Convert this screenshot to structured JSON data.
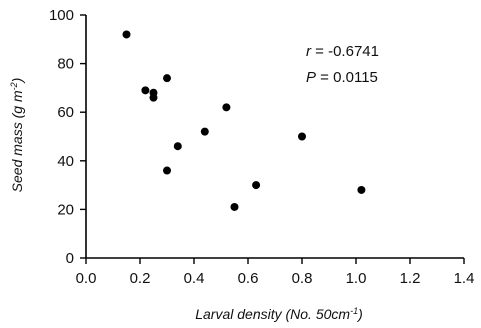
{
  "chart_data": {
    "type": "scatter",
    "xlabel": {
      "text": "Larval density (No. 50cm",
      "sup": "-1",
      "close": ")"
    },
    "ylabel": {
      "text": "Seed mass (g m",
      "sup": "-2",
      "close": ")"
    },
    "xlim": [
      0.0,
      1.4
    ],
    "ylim": [
      0,
      100
    ],
    "xticks": [
      0.0,
      0.2,
      0.4,
      0.6,
      0.8,
      1.0,
      1.2,
      1.4
    ],
    "xtick_labels": [
      "0.0",
      "0.2",
      "0.4",
      "0.6",
      "0.8",
      "1.0",
      "1.2",
      "1.4"
    ],
    "yticks": [
      0,
      20,
      40,
      60,
      80,
      100
    ],
    "ytick_labels": [
      "0",
      "20",
      "40",
      "60",
      "80",
      "100"
    ],
    "grid": false,
    "series": [
      {
        "points": [
          {
            "x": 0.15,
            "y": 92
          },
          {
            "x": 0.22,
            "y": 69
          },
          {
            "x": 0.25,
            "y": 68
          },
          {
            "x": 0.25,
            "y": 66
          },
          {
            "x": 0.3,
            "y": 74
          },
          {
            "x": 0.3,
            "y": 36
          },
          {
            "x": 0.34,
            "y": 46
          },
          {
            "x": 0.44,
            "y": 52
          },
          {
            "x": 0.52,
            "y": 62
          },
          {
            "x": 0.55,
            "y": 21
          },
          {
            "x": 0.63,
            "y": 30
          },
          {
            "x": 0.8,
            "y": 50
          },
          {
            "x": 1.02,
            "y": 28
          }
        ]
      }
    ],
    "annotations": {
      "r_label": "r",
      "r_value": " = -0.6741",
      "p_label": "P",
      "p_value": " = 0.0115"
    }
  }
}
